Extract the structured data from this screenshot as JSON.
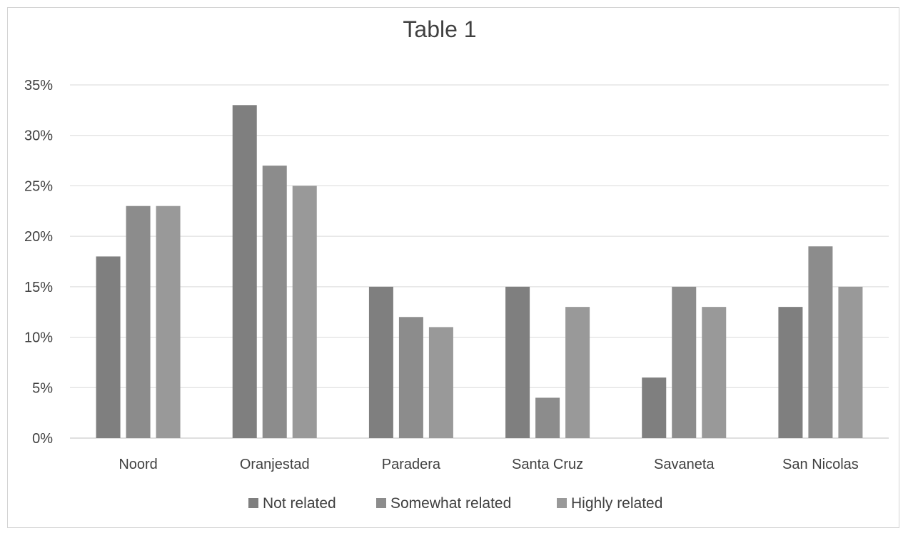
{
  "chart_data": {
    "type": "bar",
    "title": "Table 1",
    "categories": [
      "Noord",
      "Oranjestad",
      "Paradera",
      "Santa Cruz",
      "Savaneta",
      "San Nicolas"
    ],
    "series": [
      {
        "name": "Not related",
        "values": [
          18,
          33,
          15,
          15,
          6,
          13
        ],
        "color": "#7f7f7f"
      },
      {
        "name": "Somewhat related",
        "values": [
          23,
          27,
          12,
          4,
          15,
          19
        ],
        "color": "#8c8c8c"
      },
      {
        "name": "Highly related",
        "values": [
          23,
          25,
          11,
          13,
          13,
          15
        ],
        "color": "#999999"
      }
    ],
    "yticks": [
      "0%",
      "5%",
      "10%",
      "15%",
      "20%",
      "25%",
      "30%",
      "35%"
    ],
    "ylim": [
      0,
      35
    ],
    "grid": true,
    "legend": "bottom-center"
  }
}
